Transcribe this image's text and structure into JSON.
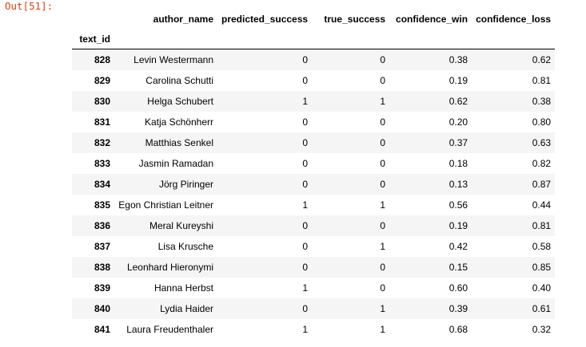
{
  "prompt": "Out[51]:",
  "table": {
    "index_name": "text_id",
    "columns": [
      "author_name",
      "predicted_success",
      "true_success",
      "confidence_win",
      "confidence_loss"
    ],
    "rows": [
      {
        "text_id": "828",
        "author_name": "Levin Westermann",
        "predicted_success": "0",
        "true_success": "0",
        "confidence_win": "0.38",
        "confidence_loss": "0.62"
      },
      {
        "text_id": "829",
        "author_name": "Carolina Schutti",
        "predicted_success": "0",
        "true_success": "0",
        "confidence_win": "0.19",
        "confidence_loss": "0.81"
      },
      {
        "text_id": "830",
        "author_name": "Helga Schubert",
        "predicted_success": "1",
        "true_success": "1",
        "confidence_win": "0.62",
        "confidence_loss": "0.38"
      },
      {
        "text_id": "831",
        "author_name": "Katja Schönherr",
        "predicted_success": "0",
        "true_success": "0",
        "confidence_win": "0.20",
        "confidence_loss": "0.80"
      },
      {
        "text_id": "832",
        "author_name": "Matthias Senkel",
        "predicted_success": "0",
        "true_success": "0",
        "confidence_win": "0.37",
        "confidence_loss": "0.63"
      },
      {
        "text_id": "833",
        "author_name": "Jasmin Ramadan",
        "predicted_success": "0",
        "true_success": "0",
        "confidence_win": "0.18",
        "confidence_loss": "0.82"
      },
      {
        "text_id": "834",
        "author_name": "Jörg Piringer",
        "predicted_success": "0",
        "true_success": "0",
        "confidence_win": "0.13",
        "confidence_loss": "0.87"
      },
      {
        "text_id": "835",
        "author_name": "Egon Christian Leitner",
        "predicted_success": "1",
        "true_success": "1",
        "confidence_win": "0.56",
        "confidence_loss": "0.44"
      },
      {
        "text_id": "836",
        "author_name": "Meral Kureyshi",
        "predicted_success": "0",
        "true_success": "0",
        "confidence_win": "0.19",
        "confidence_loss": "0.81"
      },
      {
        "text_id": "837",
        "author_name": "Lisa Krusche",
        "predicted_success": "0",
        "true_success": "1",
        "confidence_win": "0.42",
        "confidence_loss": "0.58"
      },
      {
        "text_id": "838",
        "author_name": "Leonhard Hieronymi",
        "predicted_success": "0",
        "true_success": "0",
        "confidence_win": "0.15",
        "confidence_loss": "0.85"
      },
      {
        "text_id": "839",
        "author_name": "Hanna Herbst",
        "predicted_success": "1",
        "true_success": "0",
        "confidence_win": "0.60",
        "confidence_loss": "0.40"
      },
      {
        "text_id": "840",
        "author_name": "Lydia Haider",
        "predicted_success": "0",
        "true_success": "1",
        "confidence_win": "0.39",
        "confidence_loss": "0.61"
      },
      {
        "text_id": "841",
        "author_name": "Laura Freudenthaler",
        "predicted_success": "1",
        "true_success": "1",
        "confidence_win": "0.68",
        "confidence_loss": "0.32"
      }
    ]
  },
  "colors": {
    "prompt": "#d84315",
    "row_stripe": "#f5f5f5",
    "header_rule": "#000000"
  }
}
